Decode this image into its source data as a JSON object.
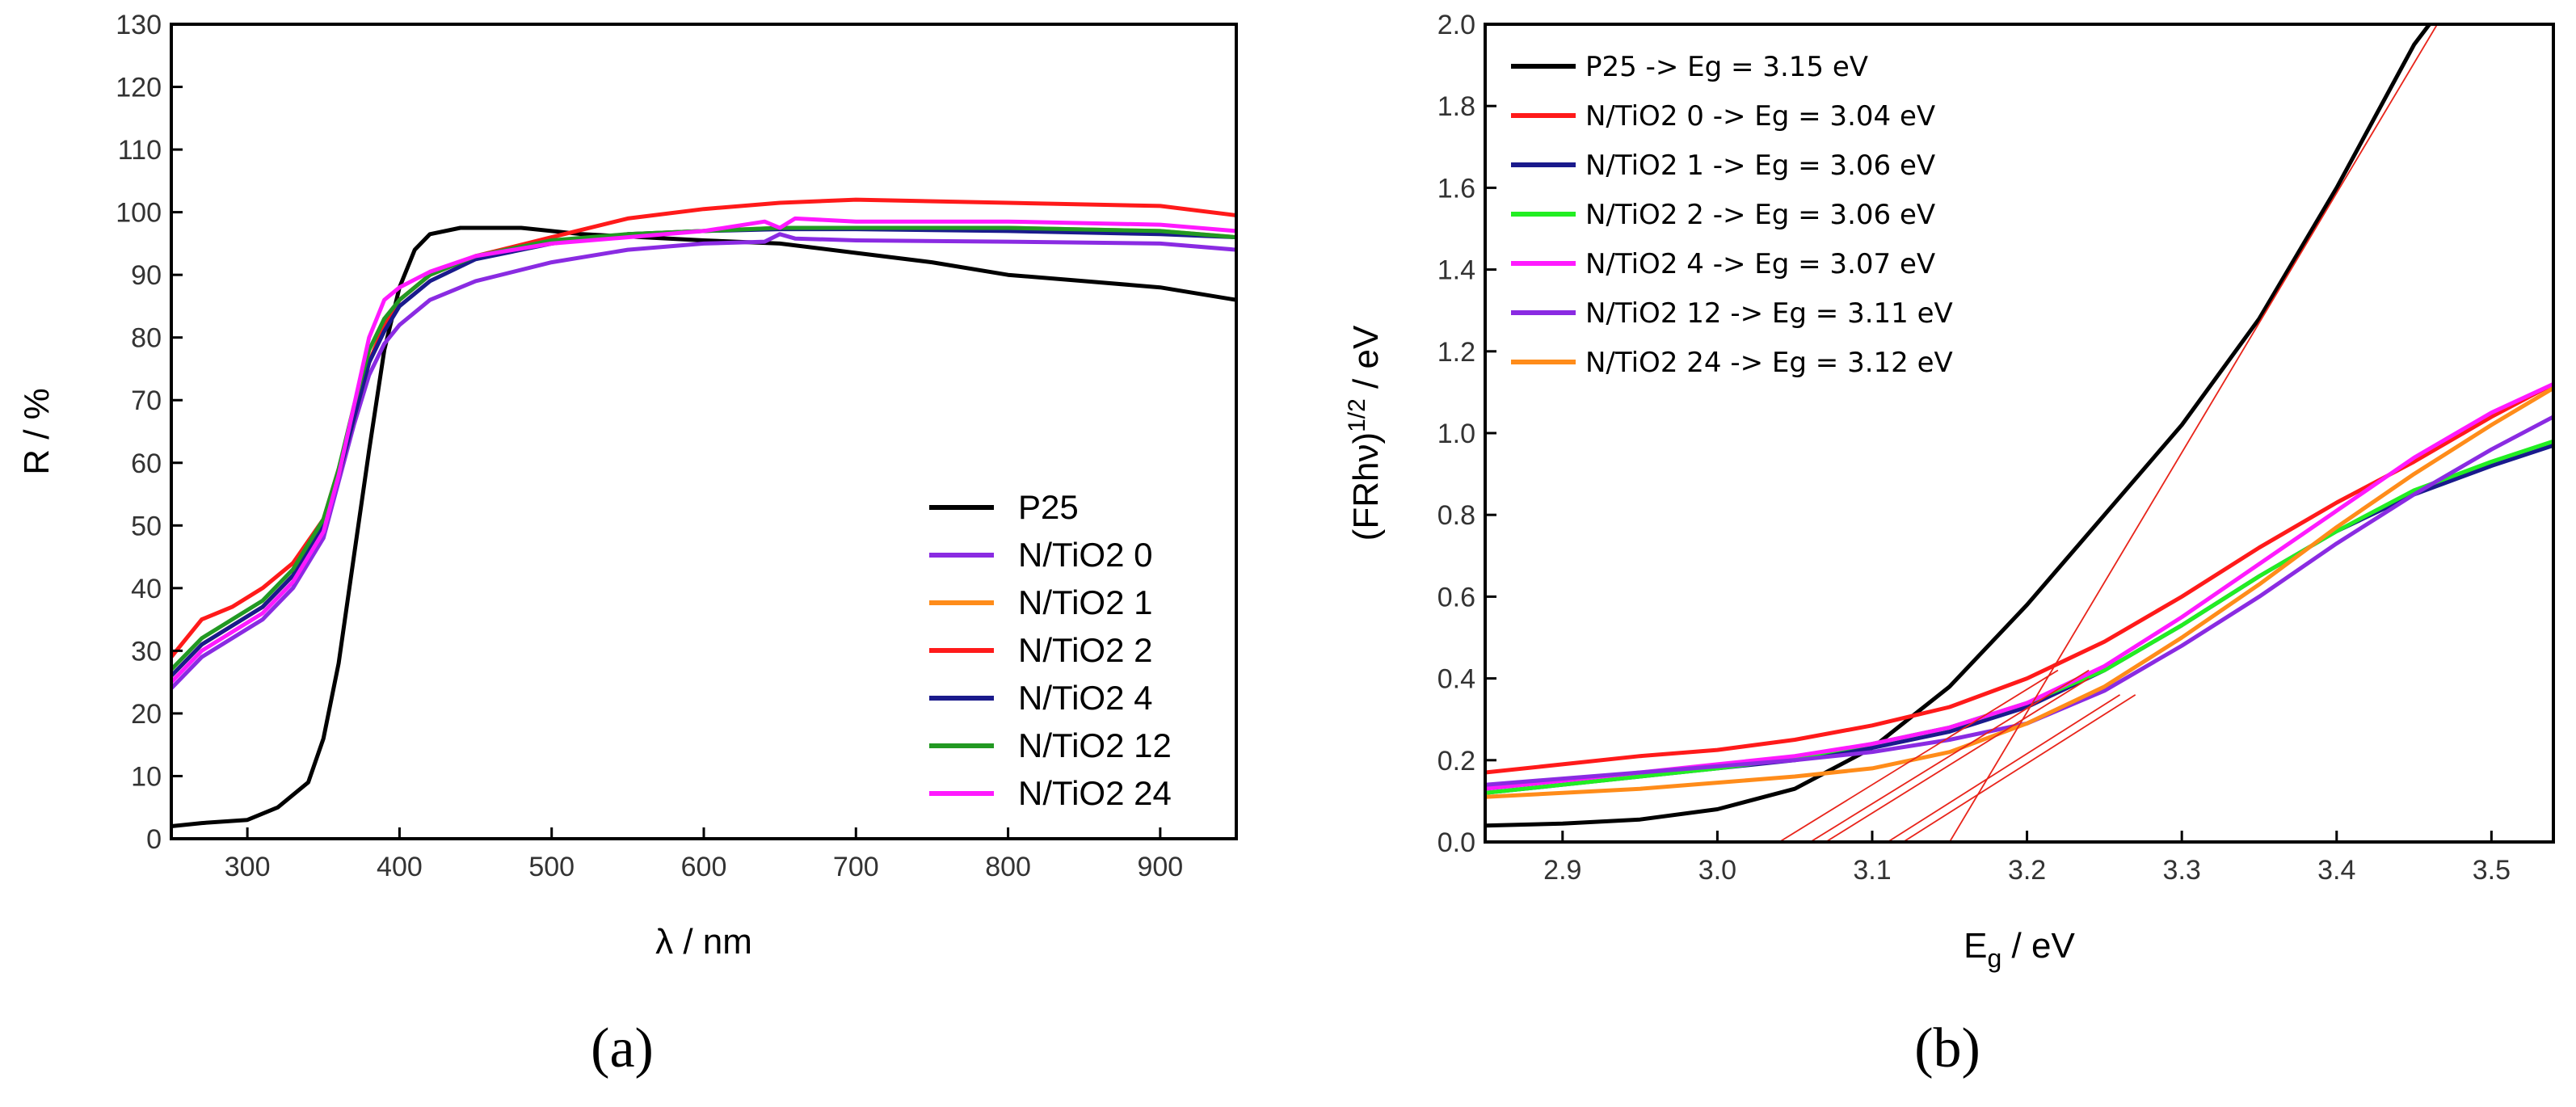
{
  "chart_data": [
    {
      "type": "line",
      "panel_label": "(a)",
      "xlabel": "λ / nm",
      "ylabel": "R / %",
      "xlim": [
        250,
        950
      ],
      "ylim": [
        0,
        130
      ],
      "xticks": [
        300,
        400,
        500,
        600,
        700,
        800,
        900
      ],
      "yticks": [
        0,
        10,
        20,
        30,
        40,
        50,
        60,
        70,
        80,
        90,
        100,
        110,
        120,
        130
      ],
      "legend_position": "bottom-right",
      "series": [
        {
          "name": "P25",
          "color": "#000000",
          "x": [
            250,
            270,
            300,
            320,
            340,
            350,
            360,
            370,
            380,
            390,
            400,
            410,
            420,
            440,
            480,
            520,
            560,
            600,
            650,
            700,
            750,
            800,
            850,
            900,
            950
          ],
          "y": [
            2,
            2.5,
            3,
            5,
            9,
            16,
            28,
            45,
            62,
            78,
            88,
            94,
            96.5,
            97.5,
            97.5,
            96.5,
            96,
            95.5,
            95,
            93.5,
            92,
            90,
            89,
            88,
            86
          ]
        },
        {
          "name": "N/TiO2 0",
          "color": "#8a2be2",
          "x": [
            250,
            270,
            290,
            310,
            330,
            350,
            360,
            370,
            380,
            390,
            400,
            420,
            450,
            500,
            550,
            600,
            640,
            650,
            660,
            700,
            800,
            900,
            950
          ],
          "y": [
            24,
            29,
            32,
            35,
            40,
            48,
            57,
            66,
            74,
            79,
            82,
            86,
            89,
            92,
            94,
            95,
            95.3,
            96.5,
            95.8,
            95.5,
            95.3,
            95,
            94
          ]
        },
        {
          "name": "N/TiO2 1",
          "color": "#ff8c1a",
          "x": [
            250,
            270,
            290,
            310,
            330,
            350,
            360,
            370,
            380,
            390,
            400,
            420,
            450,
            500,
            550,
            600,
            650,
            700,
            800,
            900,
            950
          ],
          "y": [
            26,
            31,
            34,
            37,
            42,
            50,
            58,
            67,
            76,
            82,
            86,
            90,
            93,
            95,
            96.5,
            97,
            97.5,
            97.5,
            97.5,
            97,
            96
          ]
        },
        {
          "name": "N/TiO2 2",
          "color": "#ff1a1a",
          "x": [
            250,
            270,
            290,
            310,
            330,
            350,
            360,
            370,
            380,
            390,
            400,
            420,
            450,
            500,
            550,
            600,
            650,
            700,
            800,
            900,
            950
          ],
          "y": [
            29,
            35,
            37,
            40,
            44,
            51,
            59,
            68,
            76,
            82,
            86,
            90,
            93,
            96,
            99,
            100.5,
            101.5,
            102,
            101.5,
            101,
            99.5
          ]
        },
        {
          "name": "N/TiO2 4",
          "color": "#1a1a8c",
          "x": [
            250,
            270,
            290,
            310,
            330,
            350,
            360,
            370,
            380,
            390,
            400,
            420,
            450,
            500,
            550,
            600,
            650,
            700,
            800,
            900,
            950
          ],
          "y": [
            26,
            31,
            34,
            37,
            42,
            50,
            58,
            67,
            76,
            81,
            85,
            89,
            92.5,
            95,
            96.5,
            97,
            97.3,
            97.3,
            97,
            96.5,
            96
          ]
        },
        {
          "name": "N/TiO2 12",
          "color": "#229922",
          "x": [
            250,
            270,
            290,
            310,
            330,
            350,
            360,
            370,
            380,
            390,
            400,
            420,
            450,
            500,
            550,
            600,
            650,
            700,
            800,
            900,
            950
          ],
          "y": [
            27,
            32,
            35,
            38,
            43,
            51,
            59,
            69,
            78,
            83,
            86,
            90,
            93,
            95.5,
            96.5,
            97,
            97.5,
            97.5,
            97.5,
            97,
            96
          ]
        },
        {
          "name": "N/TiO2 24",
          "color": "#ff1aff",
          "x": [
            250,
            270,
            290,
            310,
            330,
            350,
            360,
            370,
            380,
            390,
            400,
            420,
            450,
            500,
            550,
            600,
            640,
            650,
            660,
            700,
            800,
            900,
            950
          ],
          "y": [
            25,
            30,
            33,
            36,
            41,
            49,
            58,
            69,
            80,
            86,
            88,
            90.5,
            93,
            95,
            96,
            97,
            98.5,
            97.5,
            99,
            98.5,
            98.5,
            98,
            97
          ]
        }
      ]
    },
    {
      "type": "line",
      "panel_label": "(b)",
      "xlabel_main": "E",
      "xlabel_sub": "g",
      "xlabel_rest": " / eV",
      "ylabel_main": "(FRhν)",
      "ylabel_sup": "1/2",
      "ylabel_rest": " / eV",
      "xlim": [
        2.85,
        3.54
      ],
      "ylim": [
        0,
        2.0
      ],
      "xticks": [
        2.9,
        3.0,
        3.1,
        3.2,
        3.3,
        3.4,
        3.5
      ],
      "yticks": [
        0.0,
        0.2,
        0.4,
        0.6,
        0.8,
        1.0,
        1.2,
        1.4,
        1.6,
        1.8,
        2.0
      ],
      "legend_position": "top-left",
      "series": [
        {
          "name": "P25 -> Eg = 3.15 eV",
          "color": "#000000",
          "x": [
            2.85,
            2.9,
            2.95,
            3.0,
            3.05,
            3.1,
            3.15,
            3.2,
            3.25,
            3.3,
            3.35,
            3.4,
            3.45,
            3.46
          ],
          "y": [
            0.04,
            0.045,
            0.055,
            0.08,
            0.13,
            0.23,
            0.38,
            0.58,
            0.8,
            1.02,
            1.28,
            1.6,
            1.95,
            2.0
          ]
        },
        {
          "name": "N/TiO2 0 -> Eg = 3.04 eV",
          "color": "#ff1a1a",
          "x": [
            2.85,
            2.9,
            2.95,
            3.0,
            3.05,
            3.1,
            3.15,
            3.2,
            3.25,
            3.3,
            3.35,
            3.4,
            3.45,
            3.5,
            3.54
          ],
          "y": [
            0.17,
            0.19,
            0.21,
            0.225,
            0.25,
            0.285,
            0.33,
            0.4,
            0.49,
            0.6,
            0.72,
            0.83,
            0.93,
            1.04,
            1.12
          ]
        },
        {
          "name": "N/TiO2 1 -> Eg = 3.06 eV",
          "color": "#1a1a8c",
          "x": [
            2.85,
            2.9,
            2.95,
            3.0,
            3.05,
            3.1,
            3.15,
            3.2,
            3.25,
            3.3,
            3.35,
            3.4,
            3.45,
            3.5,
            3.54
          ],
          "y": [
            0.12,
            0.14,
            0.16,
            0.18,
            0.2,
            0.23,
            0.27,
            0.33,
            0.42,
            0.53,
            0.65,
            0.76,
            0.85,
            0.92,
            0.97
          ]
        },
        {
          "name": "N/TiO2 2 -> Eg = 3.06 eV",
          "color": "#22ee22",
          "x": [
            2.85,
            2.9,
            2.95,
            3.0,
            3.05,
            3.1,
            3.15,
            3.2,
            3.25,
            3.3,
            3.35,
            3.4,
            3.45,
            3.5,
            3.54
          ],
          "y": [
            0.12,
            0.14,
            0.16,
            0.18,
            0.205,
            0.24,
            0.28,
            0.34,
            0.42,
            0.53,
            0.65,
            0.76,
            0.86,
            0.93,
            0.98
          ]
        },
        {
          "name": "N/TiO2 4 -> Eg = 3.07 eV",
          "color": "#ff1aff",
          "x": [
            2.85,
            2.9,
            2.95,
            3.0,
            3.05,
            3.1,
            3.15,
            3.2,
            3.25,
            3.3,
            3.35,
            3.4,
            3.45,
            3.5,
            3.54
          ],
          "y": [
            0.13,
            0.15,
            0.17,
            0.19,
            0.21,
            0.24,
            0.28,
            0.34,
            0.43,
            0.55,
            0.68,
            0.81,
            0.94,
            1.05,
            1.12
          ]
        },
        {
          "name": "N/TiO2 12 -> Eg = 3.11 eV",
          "color": "#8a2be2",
          "x": [
            2.85,
            2.9,
            2.95,
            3.0,
            3.05,
            3.1,
            3.15,
            3.2,
            3.25,
            3.3,
            3.35,
            3.4,
            3.45,
            3.5,
            3.54
          ],
          "y": [
            0.14,
            0.155,
            0.17,
            0.185,
            0.2,
            0.22,
            0.25,
            0.29,
            0.37,
            0.48,
            0.6,
            0.73,
            0.85,
            0.96,
            1.04
          ]
        },
        {
          "name": "N/TiO2 24 -> Eg = 3.12 eV",
          "color": "#ff8c1a",
          "x": [
            2.85,
            2.9,
            2.95,
            3.0,
            3.05,
            3.1,
            3.15,
            3.2,
            3.25,
            3.3,
            3.35,
            3.4,
            3.45,
            3.5,
            3.54
          ],
          "y": [
            0.11,
            0.12,
            0.13,
            0.145,
            0.16,
            0.18,
            0.22,
            0.29,
            0.38,
            0.5,
            0.63,
            0.77,
            0.9,
            1.02,
            1.11
          ]
        }
      ],
      "fit_lines": [
        {
          "x": [
            3.15,
            3.465
          ],
          "y": [
            0.0,
            2.0
          ]
        },
        {
          "x": [
            3.04,
            3.22
          ],
          "y": [
            0.0,
            0.42
          ]
        },
        {
          "x": [
            3.06,
            3.24
          ],
          "y": [
            0.0,
            0.42
          ]
        },
        {
          "x": [
            3.07,
            3.24
          ],
          "y": [
            0.0,
            0.4
          ]
        },
        {
          "x": [
            3.11,
            3.26
          ],
          "y": [
            0.0,
            0.36
          ]
        },
        {
          "x": [
            3.12,
            3.27
          ],
          "y": [
            0.0,
            0.36
          ]
        }
      ]
    }
  ]
}
